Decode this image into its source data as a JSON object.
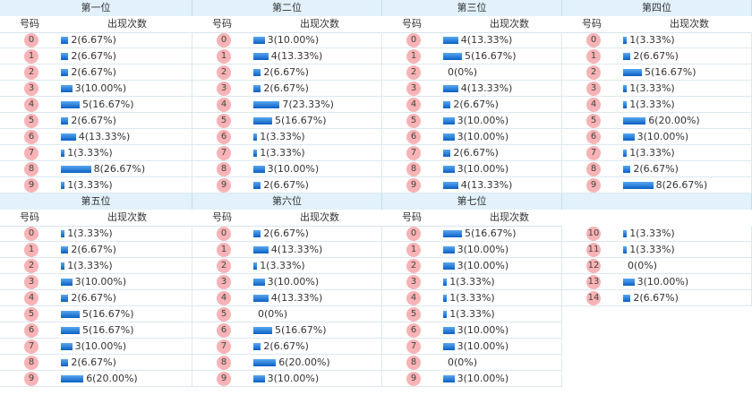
{
  "panels": [
    {
      "title": "第一位",
      "col_headers": [
        "号码",
        "出现次数"
      ],
      "digits": [
        "0",
        "1",
        "2",
        "3",
        "4",
        "5",
        "6",
        "7",
        "8",
        "9"
      ],
      "values": [
        2,
        2,
        2,
        3,
        5,
        2,
        4,
        1,
        8,
        1
      ],
      "value_labels": [
        "2(6.67%)",
        "2(6.67%)",
        "2(6.67%)",
        "3(10.00%)",
        "5(16.67%)",
        "2(6.67%)",
        "4(13.33%)",
        "1(3.33%)",
        "8(26.67%)",
        "1(3.33%)"
      ]
    },
    {
      "title": "第二位",
      "col_headers": [
        "号码",
        "出现次数"
      ],
      "digits": [
        "0",
        "1",
        "2",
        "3",
        "4",
        "5",
        "6",
        "7",
        "8",
        "9"
      ],
      "values": [
        3,
        4,
        2,
        2,
        7,
        5,
        1,
        1,
        3,
        2
      ],
      "value_labels": [
        "3(10.00%)",
        "4(13.33%)",
        "2(6.67%)",
        "2(6.67%)",
        "7(23.33%)",
        "5(16.67%)",
        "1(3.33%)",
        "1(3.33%)",
        "3(10.00%)",
        "2(6.67%)"
      ]
    },
    {
      "title": "第三位",
      "col_headers": [
        "号码",
        "出现次数"
      ],
      "digits": [
        "0",
        "1",
        "2",
        "3",
        "4",
        "5",
        "6",
        "7",
        "8",
        "9"
      ],
      "values": [
        4,
        5,
        0,
        4,
        2,
        3,
        3,
        2,
        3,
        4
      ],
      "value_labels": [
        "4(13.33%)",
        "5(16.67%)",
        "0(0%)",
        "4(13.33%)",
        "2(6.67%)",
        "3(10.00%)",
        "3(10.00%)",
        "2(6.67%)",
        "3(10.00%)",
        "4(13.33%)"
      ]
    },
    {
      "title": "第四位",
      "col_headers": [
        "号码",
        "出现次数"
      ],
      "digits": [
        "0",
        "1",
        "2",
        "3",
        "4",
        "5",
        "6",
        "7",
        "8",
        "9"
      ],
      "values": [
        1,
        2,
        5,
        1,
        1,
        6,
        3,
        1,
        2,
        8
      ],
      "value_labels": [
        "1(3.33%)",
        "2(6.67%)",
        "5(16.67%)",
        "1(3.33%)",
        "1(3.33%)",
        "6(20.00%)",
        "3(10.00%)",
        "1(3.33%)",
        "2(6.67%)",
        "8(26.67%)"
      ]
    },
    {
      "title": "第五位",
      "col_headers": [
        "号码",
        "出现次数"
      ],
      "digits": [
        "0",
        "1",
        "2",
        "3",
        "4",
        "5",
        "6",
        "7",
        "8",
        "9"
      ],
      "values": [
        1,
        2,
        1,
        3,
        2,
        5,
        5,
        3,
        2,
        6
      ],
      "value_labels": [
        "1(3.33%)",
        "2(6.67%)",
        "1(3.33%)",
        "3(10.00%)",
        "2(6.67%)",
        "5(16.67%)",
        "5(16.67%)",
        "3(10.00%)",
        "2(6.67%)",
        "6(20.00%)"
      ]
    },
    {
      "title": "第六位",
      "col_headers": [
        "号码",
        "出现次数"
      ],
      "digits": [
        "0",
        "1",
        "2",
        "3",
        "4",
        "5",
        "6",
        "7",
        "8",
        "9"
      ],
      "values": [
        2,
        4,
        1,
        3,
        4,
        0,
        5,
        2,
        6,
        3
      ],
      "value_labels": [
        "2(6.67%)",
        "4(13.33%)",
        "1(3.33%)",
        "3(10.00%)",
        "4(13.33%)",
        "0(0%)",
        "5(16.67%)",
        "2(6.67%)",
        "6(20.00%)",
        "3(10.00%)"
      ]
    },
    {
      "title": "第七位",
      "col_headers": [
        "号码",
        "出现次数"
      ],
      "digits": [
        "0",
        "1",
        "2",
        "3",
        "4",
        "5",
        "6",
        "7",
        "8",
        "9"
      ],
      "values": [
        5,
        3,
        3,
        1,
        1,
        1,
        3,
        3,
        0,
        3
      ],
      "value_labels": [
        "5(16.67%)",
        "3(10.00%)",
        "3(10.00%)",
        "1(3.33%)",
        "1(3.33%)",
        "1(3.33%)",
        "3(10.00%)",
        "3(10.00%)",
        "0(0%)",
        "3(10.00%)"
      ]
    },
    {
      "digits": [
        "10",
        "11",
        "12",
        "13",
        "14"
      ],
      "values": [
        1,
        1,
        0,
        3,
        2
      ],
      "value_labels": [
        "1(3.33%)",
        "1(3.33%)",
        "0(0%)",
        "3(10.00%)",
        "2(6.67%)"
      ]
    }
  ]
}
